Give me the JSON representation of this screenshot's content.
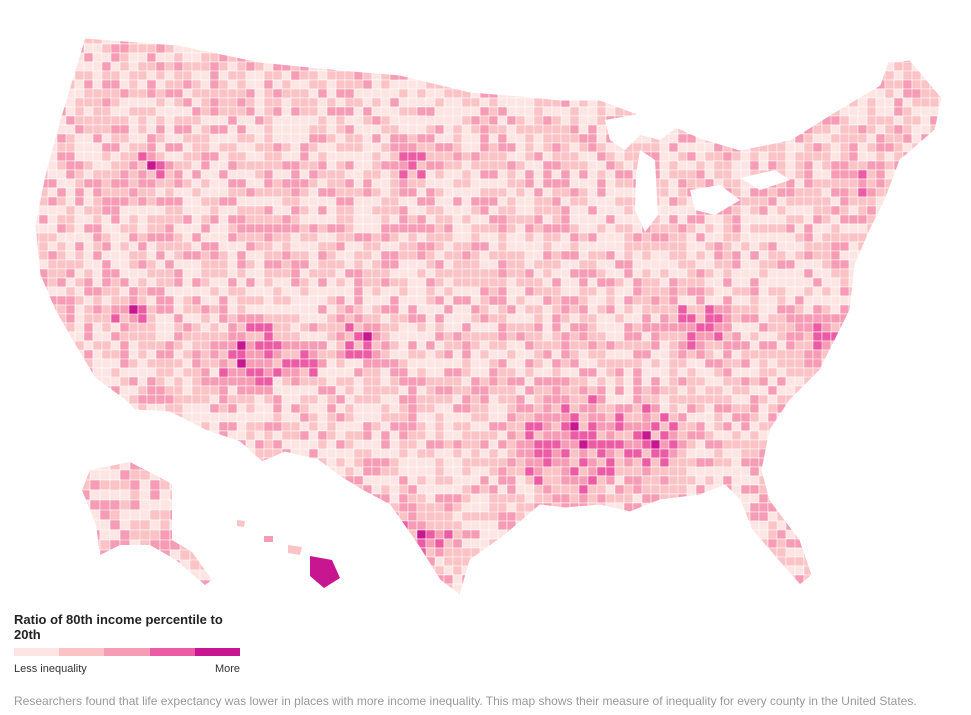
{
  "map": {
    "subject": "United States counties",
    "legend": {
      "title": "Ratio of 80th income percentile to 20th",
      "low_label": "Less inequality",
      "high_label": "More",
      "colors": [
        "#fde5e3",
        "#fbc3c6",
        "#f79cb5",
        "#ec5ca4",
        "#c81590"
      ]
    },
    "caption": "Researchers found that life expectancy was lower in places with more income inequality. This map shows their measure of inequality for every county in the United States."
  }
}
